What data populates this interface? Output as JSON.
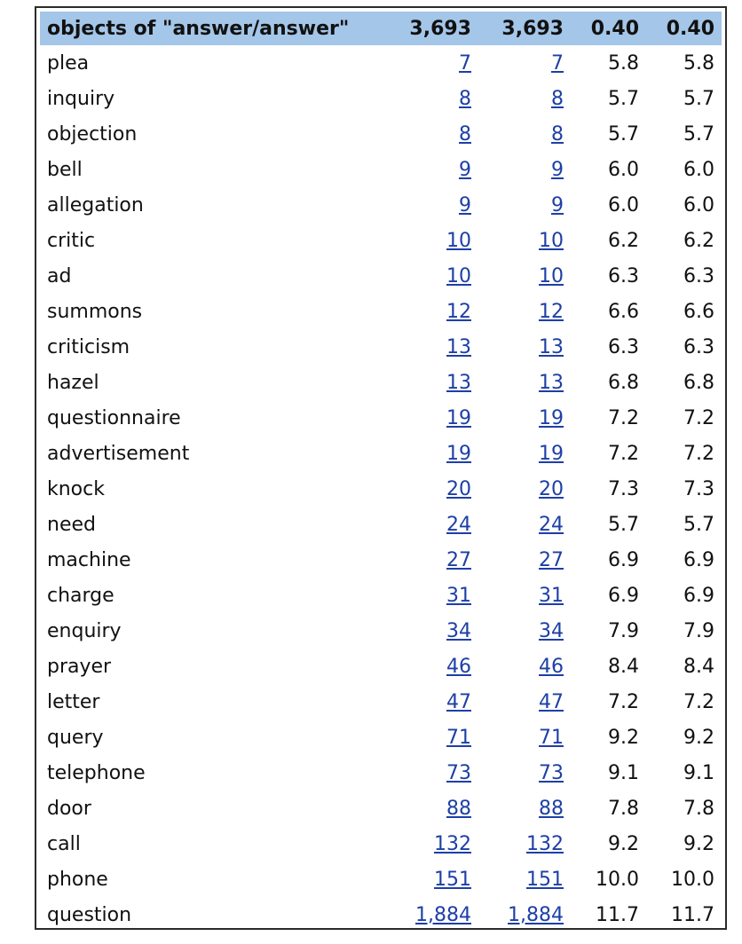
{
  "table": {
    "header": {
      "label": "objects of \"answer/answer\"",
      "count1": "3,693",
      "count2": "3,693",
      "score1": "0.40",
      "score2": "0.40"
    },
    "rows": [
      {
        "word": "plea",
        "count1": "7",
        "count2": "7",
        "score1": "5.8",
        "score2": "5.8"
      },
      {
        "word": "inquiry",
        "count1": "8",
        "count2": "8",
        "score1": "5.7",
        "score2": "5.7"
      },
      {
        "word": "objection",
        "count1": "8",
        "count2": "8",
        "score1": "5.7",
        "score2": "5.7"
      },
      {
        "word": "bell",
        "count1": "9",
        "count2": "9",
        "score1": "6.0",
        "score2": "6.0"
      },
      {
        "word": "allegation",
        "count1": "9",
        "count2": "9",
        "score1": "6.0",
        "score2": "6.0"
      },
      {
        "word": "critic",
        "count1": "10",
        "count2": "10",
        "score1": "6.2",
        "score2": "6.2"
      },
      {
        "word": "ad",
        "count1": "10",
        "count2": "10",
        "score1": "6.3",
        "score2": "6.3"
      },
      {
        "word": "summons",
        "count1": "12",
        "count2": "12",
        "score1": "6.6",
        "score2": "6.6"
      },
      {
        "word": "criticism",
        "count1": "13",
        "count2": "13",
        "score1": "6.3",
        "score2": "6.3"
      },
      {
        "word": "hazel",
        "count1": "13",
        "count2": "13",
        "score1": "6.8",
        "score2": "6.8"
      },
      {
        "word": "questionnaire",
        "count1": "19",
        "count2": "19",
        "score1": "7.2",
        "score2": "7.2"
      },
      {
        "word": "advertisement",
        "count1": "19",
        "count2": "19",
        "score1": "7.2",
        "score2": "7.2"
      },
      {
        "word": "knock",
        "count1": "20",
        "count2": "20",
        "score1": "7.3",
        "score2": "7.3"
      },
      {
        "word": "need",
        "count1": "24",
        "count2": "24",
        "score1": "5.7",
        "score2": "5.7"
      },
      {
        "word": "machine",
        "count1": "27",
        "count2": "27",
        "score1": "6.9",
        "score2": "6.9"
      },
      {
        "word": "charge",
        "count1": "31",
        "count2": "31",
        "score1": "6.9",
        "score2": "6.9"
      },
      {
        "word": "enquiry",
        "count1": "34",
        "count2": "34",
        "score1": "7.9",
        "score2": "7.9"
      },
      {
        "word": "prayer",
        "count1": "46",
        "count2": "46",
        "score1": "8.4",
        "score2": "8.4"
      },
      {
        "word": "letter",
        "count1": "47",
        "count2": "47",
        "score1": "7.2",
        "score2": "7.2"
      },
      {
        "word": "query",
        "count1": "71",
        "count2": "71",
        "score1": "9.2",
        "score2": "9.2"
      },
      {
        "word": "telephone",
        "count1": "73",
        "count2": "73",
        "score1": "9.1",
        "score2": "9.1"
      },
      {
        "word": "door",
        "count1": "88",
        "count2": "88",
        "score1": "7.8",
        "score2": "7.8"
      },
      {
        "word": "call",
        "count1": "132",
        "count2": "132",
        "score1": "9.2",
        "score2": "9.2"
      },
      {
        "word": "phone",
        "count1": "151",
        "count2": "151",
        "score1": "10.0",
        "score2": "10.0"
      },
      {
        "word": "question",
        "count1": "1,884",
        "count2": "1,884",
        "score1": "11.7",
        "score2": "11.7"
      }
    ]
  },
  "colors": {
    "header_background": "#a4c6e8",
    "link": "#1d3fa6",
    "border": "#2b2b2b"
  }
}
